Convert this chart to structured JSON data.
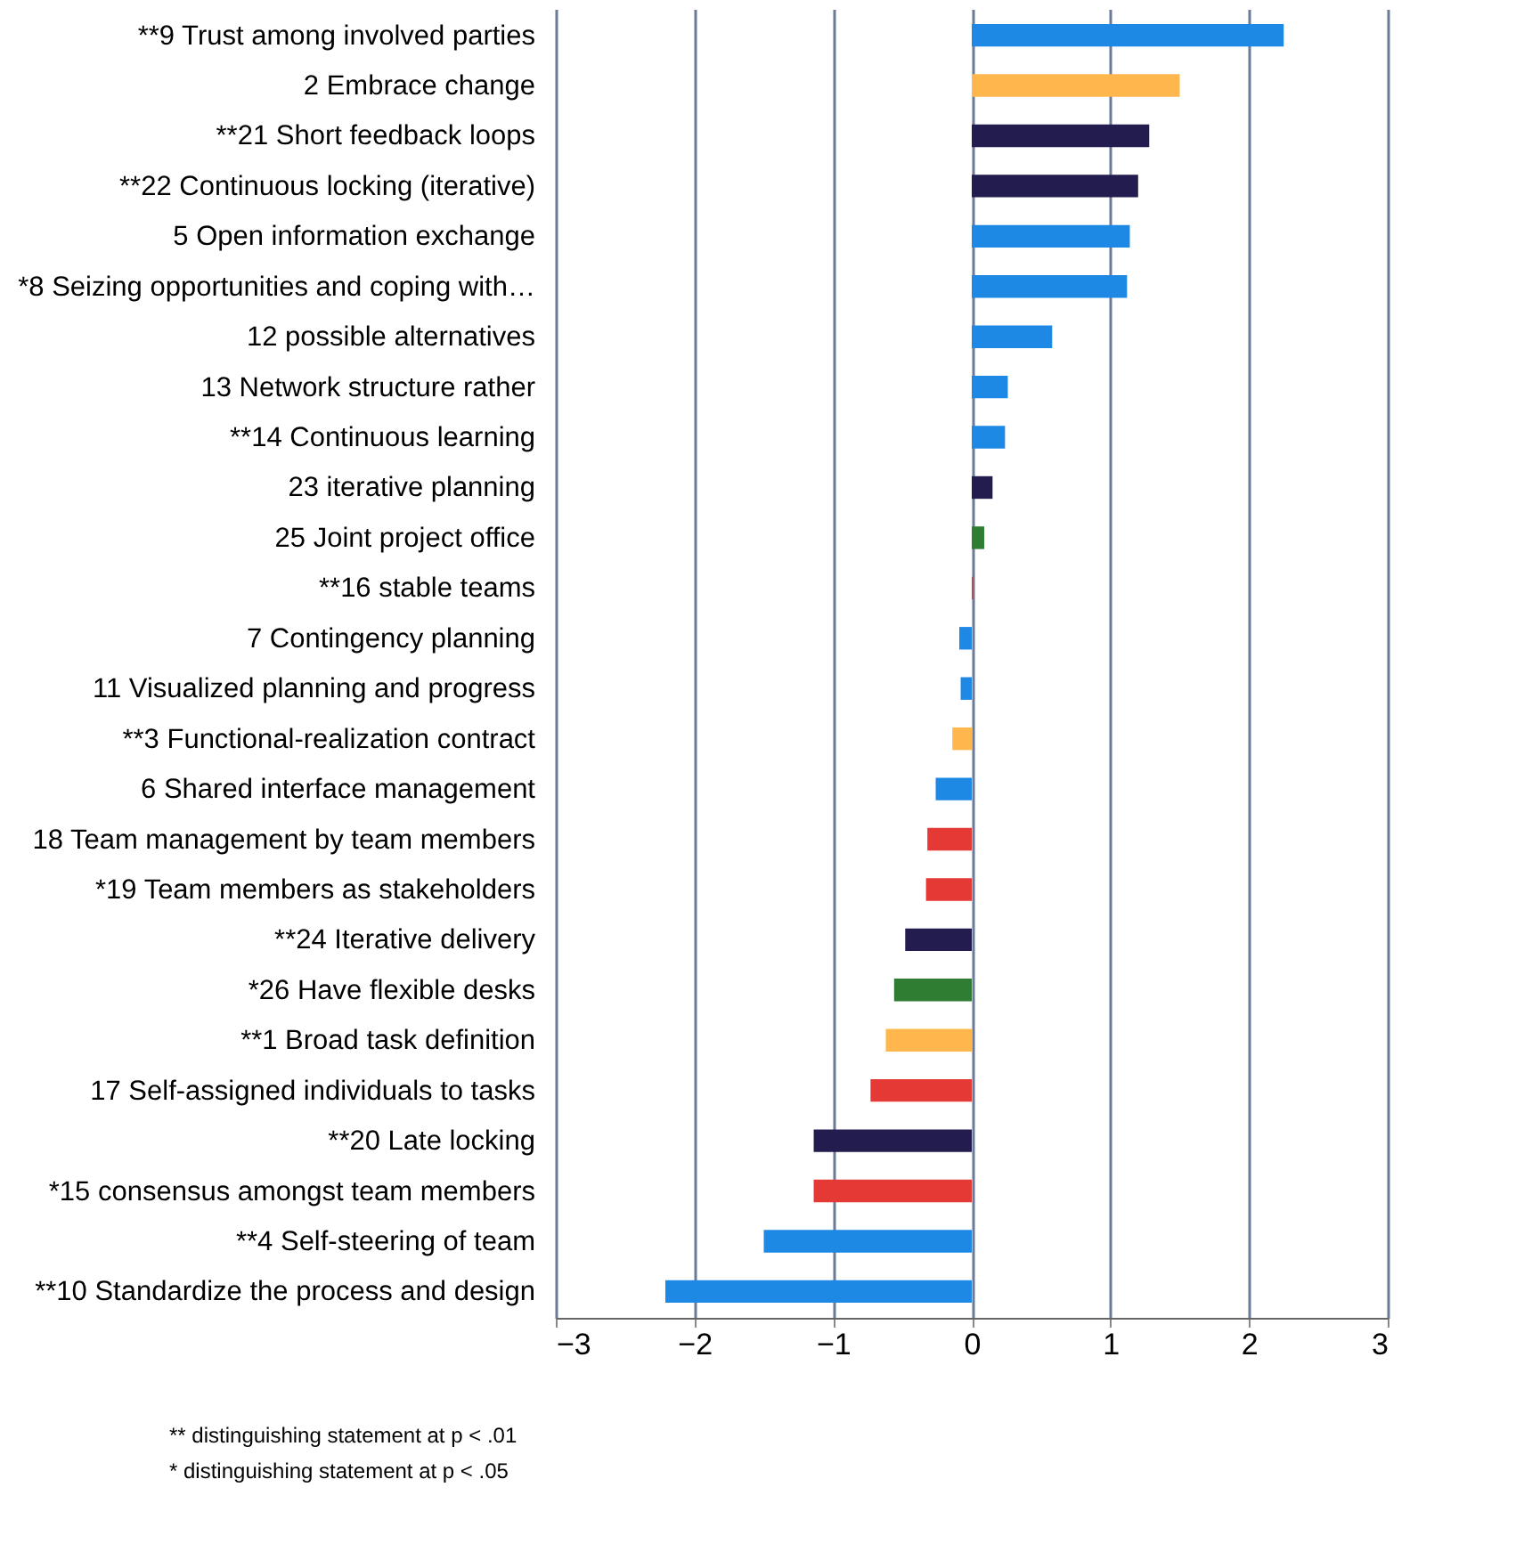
{
  "chart_data": {
    "type": "bar",
    "orientation": "horizontal",
    "categories": [
      "**9  Trust among involved parties",
      "2  Embrace change",
      "**21  Short feedback loops",
      "**22  Continuous locking (iterative)",
      "5  Open information exchange",
      "*8  Seizing opportunities and coping with…",
      "12  possible alternatives",
      "13  Network structure rather",
      "**14  Continuous learning",
      "23  iterative planning",
      "25  Joint project office",
      "**16  stable teams",
      "7  Contingency planning",
      "11  Visualized planning and progress",
      "**3  Functional-realization contract",
      "6  Shared interface management",
      "18  Team management by team members",
      "*19  Team members as stakeholders",
      "**24  Iterative delivery",
      "*26  Have flexible desks",
      "**1  Broad task definition",
      "17  Self-assigned individuals to tasks",
      "**20  Late locking",
      "*15  consensus amongst team members",
      "**4  Self-steering of team",
      "**10  Standardize the  process and design"
    ],
    "values": [
      2.25,
      1.5,
      1.28,
      1.2,
      1.14,
      1.12,
      0.58,
      0.26,
      0.24,
      0.15,
      0.09,
      0.01,
      -0.09,
      -0.08,
      -0.14,
      -0.26,
      -0.32,
      -0.33,
      -0.48,
      -0.56,
      -0.62,
      -0.73,
      -1.14,
      -1.14,
      -1.5,
      -2.21
    ],
    "colors": [
      "#1e88e5",
      "#ffb74d",
      "#231c4f",
      "#231c4f",
      "#1e88e5",
      "#1e88e5",
      "#1e88e5",
      "#1e88e5",
      "#1e88e5",
      "#231c4f",
      "#2e7d32",
      "#e53935",
      "#1e88e5",
      "#1e88e5",
      "#ffb74d",
      "#1e88e5",
      "#e53935",
      "#e53935",
      "#231c4f",
      "#2e7d32",
      "#ffb74d",
      "#e53935",
      "#231c4f",
      "#e53935",
      "#1e88e5",
      "#1e88e5"
    ],
    "xlim": [
      -3,
      3
    ],
    "xticks": [
      -3,
      -2,
      -1,
      0,
      1,
      2,
      3
    ],
    "grid": "x",
    "annotations": [
      "** distinguishing statement at p < .01",
      "* distinguishing statement at p < .05"
    ]
  }
}
